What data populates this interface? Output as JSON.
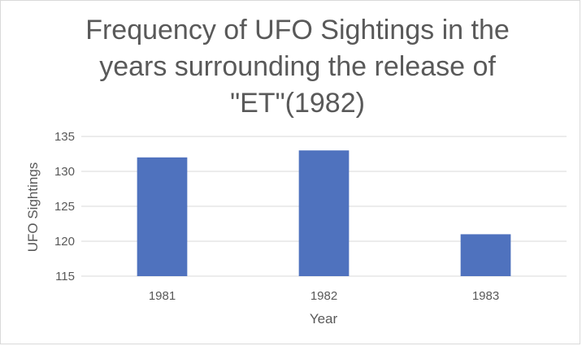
{
  "chart_data": {
    "type": "bar",
    "title_lines": [
      "Frequency of UFO Sightings in the",
      "years surrounding the release of",
      "\"ET\"(1982)"
    ],
    "categories": [
      "1981",
      "1982",
      "1983"
    ],
    "values": [
      132,
      133,
      121
    ],
    "xlabel": "Year",
    "ylabel": "UFO Sightings",
    "ylim": [
      115,
      135
    ],
    "yticks": [
      115,
      120,
      125,
      130,
      135
    ],
    "grid": true,
    "legend": "none",
    "bar_color": "#4f72be",
    "grid_color": "#d9d9d9"
  }
}
